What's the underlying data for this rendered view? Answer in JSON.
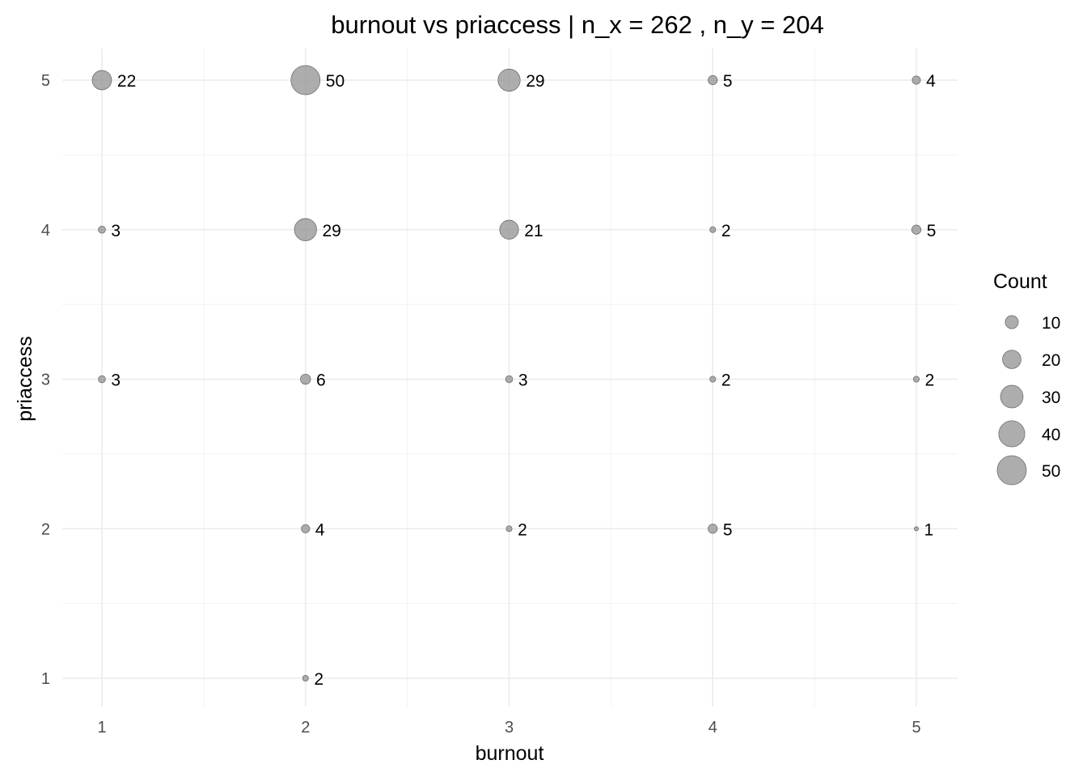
{
  "chart_data": {
    "type": "scatter",
    "title": "burnout vs priaccess | n_x = 262 , n_y = 204",
    "xlabel": "burnout",
    "ylabel": "priaccess",
    "x_ticks": [
      1,
      2,
      3,
      4,
      5
    ],
    "y_ticks": [
      1,
      2,
      3,
      4,
      5
    ],
    "xlim": [
      0.8,
      5.2
    ],
    "ylim": [
      0.8,
      5.2
    ],
    "grid": true,
    "point_color": "#999999",
    "point_stroke": "#6e6e6e",
    "legend": {
      "title": "Count",
      "position": "right",
      "values": [
        10,
        20,
        30,
        40,
        50
      ]
    },
    "points": [
      {
        "x": 1,
        "y": 5,
        "count": 22
      },
      {
        "x": 2,
        "y": 5,
        "count": 50
      },
      {
        "x": 3,
        "y": 5,
        "count": 29
      },
      {
        "x": 4,
        "y": 5,
        "count": 5
      },
      {
        "x": 5,
        "y": 5,
        "count": 4
      },
      {
        "x": 1,
        "y": 4,
        "count": 3
      },
      {
        "x": 2,
        "y": 4,
        "count": 29
      },
      {
        "x": 3,
        "y": 4,
        "count": 21
      },
      {
        "x": 4,
        "y": 4,
        "count": 2
      },
      {
        "x": 5,
        "y": 4,
        "count": 5
      },
      {
        "x": 1,
        "y": 3,
        "count": 3
      },
      {
        "x": 2,
        "y": 3,
        "count": 6
      },
      {
        "x": 3,
        "y": 3,
        "count": 3
      },
      {
        "x": 4,
        "y": 3,
        "count": 2
      },
      {
        "x": 5,
        "y": 3,
        "count": 2
      },
      {
        "x": 2,
        "y": 2,
        "count": 4
      },
      {
        "x": 3,
        "y": 2,
        "count": 2
      },
      {
        "x": 4,
        "y": 2,
        "count": 5
      },
      {
        "x": 5,
        "y": 2,
        "count": 1
      },
      {
        "x": 2,
        "y": 1,
        "count": 2
      }
    ]
  }
}
